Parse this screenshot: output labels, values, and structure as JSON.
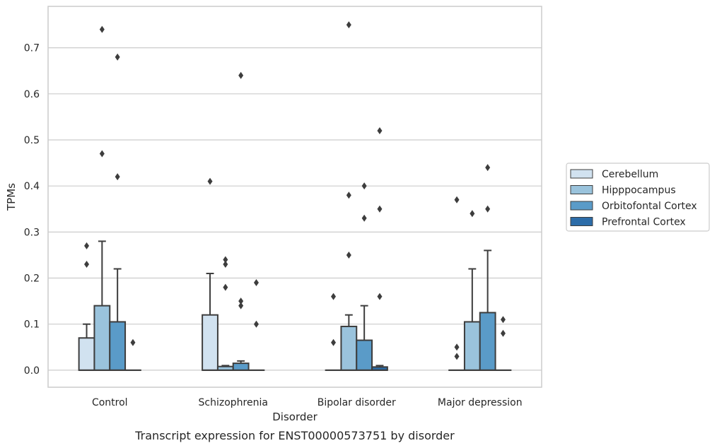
{
  "caption": "Transcript expression for ENST00000573751 by disorder",
  "chart_data": {
    "type": "box",
    "xlabel": "Disorder",
    "ylabel": "TPMs",
    "ylim": [
      -0.037,
      0.79
    ],
    "yticks": [
      0.0,
      0.1,
      0.2,
      0.3,
      0.4,
      0.5,
      0.6,
      0.7
    ],
    "ytick_labels": [
      "0.0",
      "0.1",
      "0.2",
      "0.3",
      "0.4",
      "0.5",
      "0.6",
      "0.7"
    ],
    "grid": "horizontal",
    "legend_position": "right",
    "categories": [
      "Control",
      "Schizophrenia",
      "Bipolar disorder",
      "Major depression"
    ],
    "series": [
      {
        "name": "Cerebellum",
        "color": "#d1e2f0",
        "boxes": [
          {
            "q1": 0,
            "median": 0,
            "q3": 0.07,
            "whisker_low": 0,
            "whisker_high": 0.1,
            "outliers": [
              0.23,
              0.27
            ]
          },
          {
            "q1": 0,
            "median": 0,
            "q3": 0.12,
            "whisker_low": 0,
            "whisker_high": 0.21,
            "outliers": [
              0.41
            ]
          },
          {
            "q1": 0,
            "median": 0,
            "q3": 0,
            "whisker_low": 0,
            "whisker_high": 0,
            "outliers": [
              0.06,
              0.16
            ]
          },
          {
            "q1": 0,
            "median": 0,
            "q3": 0,
            "whisker_low": 0,
            "whisker_high": 0,
            "outliers": [
              0.03,
              0.05,
              0.37
            ]
          }
        ]
      },
      {
        "name": "Hipppocampus",
        "color": "#9ac3dc",
        "boxes": [
          {
            "q1": 0,
            "median": 0,
            "q3": 0.14,
            "whisker_low": 0,
            "whisker_high": 0.28,
            "outliers": [
              0.47,
              0.74
            ]
          },
          {
            "q1": 0,
            "median": 0,
            "q3": 0.008,
            "whisker_low": 0,
            "whisker_high": 0.01,
            "outliers": [
              0.18,
              0.23,
              0.24
            ]
          },
          {
            "q1": 0,
            "median": 0,
            "q3": 0.095,
            "whisker_low": 0,
            "whisker_high": 0.12,
            "outliers": [
              0.25,
              0.38,
              0.75
            ]
          },
          {
            "q1": 0,
            "median": 0,
            "q3": 0.105,
            "whisker_low": 0,
            "whisker_high": 0.22,
            "outliers": [
              0.34
            ]
          }
        ]
      },
      {
        "name": "Orbitofontal Cortex",
        "color": "#5a9bc8",
        "boxes": [
          {
            "q1": 0,
            "median": 0,
            "q3": 0.105,
            "whisker_low": 0,
            "whisker_high": 0.22,
            "outliers": [
              0.42,
              0.68
            ]
          },
          {
            "q1": 0,
            "median": 0,
            "q3": 0.015,
            "whisker_low": 0,
            "whisker_high": 0.02,
            "outliers": [
              0.14,
              0.15,
              0.64
            ]
          },
          {
            "q1": 0,
            "median": 0,
            "q3": 0.065,
            "whisker_low": 0,
            "whisker_high": 0.14,
            "outliers": [
              0.33,
              0.4
            ]
          },
          {
            "q1": 0,
            "median": 0,
            "q3": 0.125,
            "whisker_low": 0,
            "whisker_high": 0.26,
            "outliers": [
              0.35,
              0.44
            ]
          }
        ]
      },
      {
        "name": "Prefrontal Cortex",
        "color": "#2c6ca8",
        "boxes": [
          {
            "q1": 0,
            "median": 0,
            "q3": 0,
            "whisker_low": 0,
            "whisker_high": 0,
            "outliers": [
              0.06
            ]
          },
          {
            "q1": 0,
            "median": 0,
            "q3": 0,
            "whisker_low": 0,
            "whisker_high": 0,
            "outliers": [
              0.1,
              0.19
            ]
          },
          {
            "q1": 0,
            "median": 0,
            "q3": 0.007,
            "whisker_low": 0,
            "whisker_high": 0.01,
            "outliers": [
              0.16,
              0.35,
              0.52
            ]
          },
          {
            "q1": 0,
            "median": 0,
            "q3": 0,
            "whisker_low": 0,
            "whisker_high": 0,
            "outliers": [
              0.08,
              0.11
            ]
          }
        ]
      }
    ]
  }
}
